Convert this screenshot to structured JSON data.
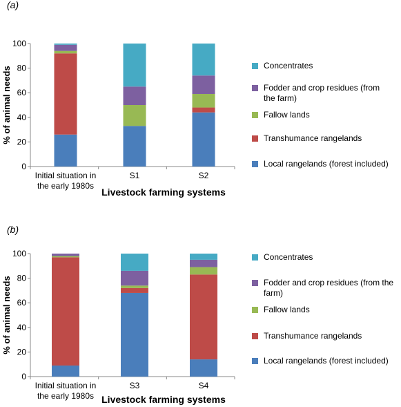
{
  "chart_data": [
    {
      "type": "bar",
      "stacked": true,
      "panel_label": "(a)",
      "categories": [
        [
          "Initial situation in",
          "the early 1980s"
        ],
        [
          "S1"
        ],
        [
          "S2"
        ]
      ],
      "xlabel": "Livestock farming systems",
      "ylabel": "% of animal needs",
      "ylim": [
        0,
        100
      ],
      "yticks": [
        0,
        20,
        40,
        60,
        80,
        100
      ],
      "legend_position": "right",
      "series": [
        {
          "name": "Local rangelands (forest included)",
          "color": "#4A7EBB",
          "values": [
            26,
            33,
            44
          ]
        },
        {
          "name": "Transhumance rangelands",
          "color": "#BE4B48",
          "values": [
            66,
            0,
            4
          ]
        },
        {
          "name": "Fallow lands",
          "color": "#98B954",
          "values": [
            2,
            17,
            11
          ]
        },
        {
          "name": "Fodder and crop residues (from the farm)",
          "color": "#7D60A0",
          "values": [
            5,
            15,
            15
          ]
        },
        {
          "name": "Concentrates",
          "color": "#46AAC4",
          "values": [
            1,
            35,
            26
          ]
        }
      ],
      "legend_lines": [
        [
          "Concentrates"
        ],
        [
          "Fodder and crop residues (from",
          "the farm)"
        ],
        [
          "Fallow lands"
        ],
        [
          "Transhumance rangelands"
        ],
        [
          "Local rangelands (forest included)"
        ]
      ]
    },
    {
      "type": "bar",
      "stacked": true,
      "panel_label": "(b)",
      "categories": [
        [
          "Initial situation in",
          "the early 1980s"
        ],
        [
          "S3"
        ],
        [
          "S4"
        ]
      ],
      "xlabel": "Livestock farming systems",
      "ylabel": "% of animal needs",
      "ylim": [
        0,
        100
      ],
      "yticks": [
        0,
        20,
        40,
        60,
        80,
        100
      ],
      "legend_position": "right",
      "series": [
        {
          "name": "Local rangelands (forest included)",
          "color": "#4A7EBB",
          "values": [
            9,
            68,
            14
          ]
        },
        {
          "name": "Transhumance rangelands",
          "color": "#BE4B48",
          "values": [
            88,
            4,
            69
          ]
        },
        {
          "name": "Fallow lands",
          "color": "#98B954",
          "values": [
            1,
            2,
            6
          ]
        },
        {
          "name": "Fodder and crop residues (from the farm)",
          "color": "#7D60A0",
          "values": [
            2,
            12,
            6
          ]
        },
        {
          "name": "Concentrates",
          "color": "#46AAC4",
          "values": [
            0,
            14,
            5
          ]
        }
      ],
      "legend_lines": [
        [
          "Concentrates"
        ],
        [
          "Fodder and crop residues (from the",
          "farm)"
        ],
        [
          "Fallow lands"
        ],
        [
          "Transhumance rangelands"
        ],
        [
          "Local rangelands (forest included)"
        ]
      ]
    }
  ]
}
